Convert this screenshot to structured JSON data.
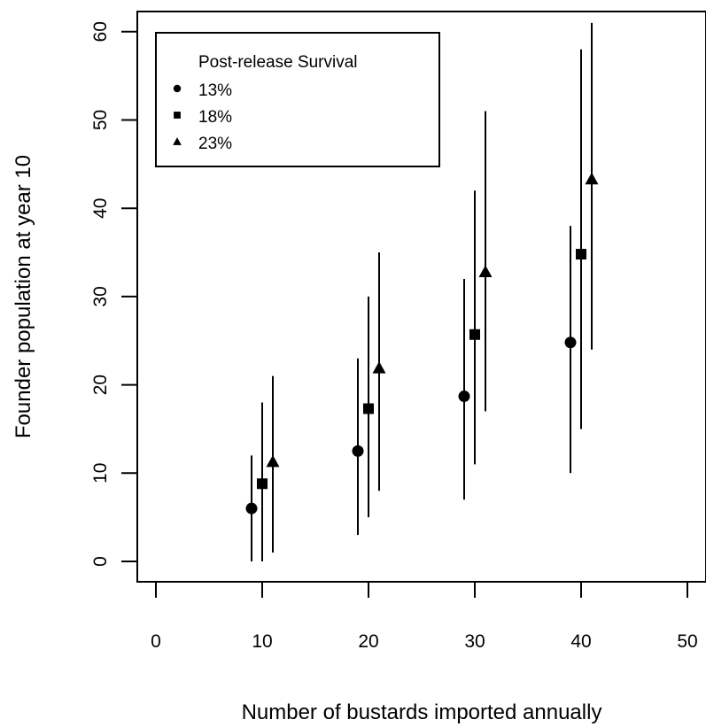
{
  "chart_data": {
    "type": "scatter",
    "xlabel": "Number of bustards imported annually",
    "ylabel": "Founder population at year 10",
    "xlim": [
      0,
      50
    ],
    "ylim": [
      0,
      60
    ],
    "xticks": [
      0,
      10,
      20,
      30,
      40,
      50
    ],
    "yticks": [
      0,
      10,
      20,
      30,
      40,
      50,
      60
    ],
    "x_tick_labels": [
      "0",
      "10",
      "20",
      "30",
      "40",
      "50"
    ],
    "y_tick_labels": [
      "0",
      "10",
      "20",
      "30",
      "40",
      "50",
      "60"
    ],
    "grid": false,
    "legend": {
      "title": "Post-release Survival",
      "position": "top-left"
    },
    "series": [
      {
        "name": "13%",
        "marker": "circle",
        "x": [
          9,
          19,
          29,
          39
        ],
        "y": [
          6,
          12.5,
          18.7,
          24.8
        ],
        "lower": [
          0,
          3,
          7,
          10
        ],
        "upper": [
          12,
          23,
          32,
          38
        ]
      },
      {
        "name": "18%",
        "marker": "square",
        "x": [
          10,
          20,
          30,
          40
        ],
        "y": [
          8.8,
          17.3,
          25.7,
          34.8
        ],
        "lower": [
          0,
          5,
          11,
          15
        ],
        "upper": [
          18,
          30,
          42,
          58
        ]
      },
      {
        "name": "23%",
        "marker": "triangle",
        "x": [
          11,
          21,
          31,
          41
        ],
        "y": [
          11.3,
          21.9,
          32.8,
          43.3
        ],
        "lower": [
          1,
          8,
          17,
          24
        ],
        "upper": [
          21,
          35,
          51,
          61
        ]
      }
    ]
  }
}
